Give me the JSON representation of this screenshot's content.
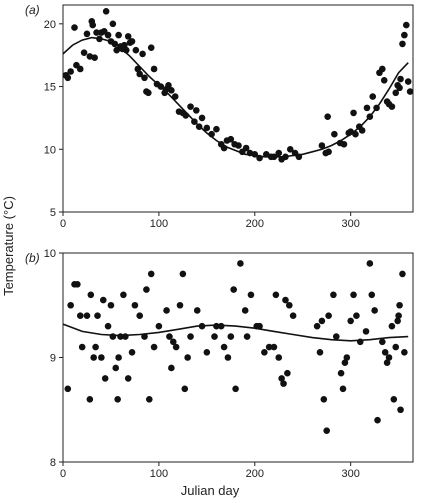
{
  "figure": {
    "ylabel": "Temperature (°C)",
    "xlabel": "Julian day"
  },
  "chart_data": [
    {
      "type": "scatter",
      "panel_label": "(a)",
      "xlim": [
        0,
        365
      ],
      "ylim": [
        5,
        21.5
      ],
      "xticks": [
        0,
        100,
        200,
        300
      ],
      "yticks": [
        5,
        10,
        15,
        20
      ],
      "grid": false,
      "points": [
        [
          3,
          15.9
        ],
        [
          5,
          15.7
        ],
        [
          8,
          16.2
        ],
        [
          12,
          19.7
        ],
        [
          14,
          16.7
        ],
        [
          18,
          16.4
        ],
        [
          22,
          17.7
        ],
        [
          25,
          19.2
        ],
        [
          28,
          17.4
        ],
        [
          30,
          20.2
        ],
        [
          31,
          19.9
        ],
        [
          33,
          17.3
        ],
        [
          35,
          19.3
        ],
        [
          38,
          18.8
        ],
        [
          40,
          19.3
        ],
        [
          43,
          19.4
        ],
        [
          45,
          21.0
        ],
        [
          47,
          19.1
        ],
        [
          50,
          18.6
        ],
        [
          52,
          20.0
        ],
        [
          54,
          18.4
        ],
        [
          56,
          17.9
        ],
        [
          58,
          19.1
        ],
        [
          60,
          18.2
        ],
        [
          62,
          18.0
        ],
        [
          64,
          18.3
        ],
        [
          66,
          17.9
        ],
        [
          68,
          19.0
        ],
        [
          70,
          18.5
        ],
        [
          72,
          18.6
        ],
        [
          76,
          17.9
        ],
        [
          78,
          16.4
        ],
        [
          80,
          16.0
        ],
        [
          83,
          17.6
        ],
        [
          85,
          15.7
        ],
        [
          87,
          14.6
        ],
        [
          89,
          14.5
        ],
        [
          92,
          18.1
        ],
        [
          95,
          16.4
        ],
        [
          98,
          15.2
        ],
        [
          102,
          15.0
        ],
        [
          106,
          14.5
        ],
        [
          108,
          14.8
        ],
        [
          110,
          15.1
        ],
        [
          113,
          14.7
        ],
        [
          117,
          14.2
        ],
        [
          121,
          13.0
        ],
        [
          125,
          12.9
        ],
        [
          128,
          12.7
        ],
        [
          133,
          13.4
        ],
        [
          137,
          12.2
        ],
        [
          139,
          13.1
        ],
        [
          142,
          11.8
        ],
        [
          145,
          12.5
        ],
        [
          150,
          11.7
        ],
        [
          155,
          11.2
        ],
        [
          160,
          11.6
        ],
        [
          165,
          10.4
        ],
        [
          168,
          10.1
        ],
        [
          171,
          10.7
        ],
        [
          175,
          10.8
        ],
        [
          179,
          10.4
        ],
        [
          183,
          10.3
        ],
        [
          187,
          9.8
        ],
        [
          191,
          10.1
        ],
        [
          195,
          9.7
        ],
        [
          200,
          9.6
        ],
        [
          205,
          9.3
        ],
        [
          212,
          9.6
        ],
        [
          217,
          9.4
        ],
        [
          220,
          9.4
        ],
        [
          225,
          9.7
        ],
        [
          228,
          9.2
        ],
        [
          232,
          9.4
        ],
        [
          237,
          10.0
        ],
        [
          242,
          9.7
        ],
        [
          246,
          9.4
        ],
        [
          270,
          10.3
        ],
        [
          274,
          9.7
        ],
        [
          277,
          9.8
        ],
        [
          283,
          11.2
        ],
        [
          289,
          10.5
        ],
        [
          293,
          10.4
        ],
        [
          298,
          11.3
        ],
        [
          300,
          11.4
        ],
        [
          303,
          12.9
        ],
        [
          305,
          11.2
        ],
        [
          309,
          11.8
        ],
        [
          312,
          11.5
        ],
        [
          317,
          13.3
        ],
        [
          320,
          12.6
        ],
        [
          323,
          14.2
        ],
        [
          327,
          13.3
        ],
        [
          330,
          16.1
        ],
        [
          333,
          16.4
        ],
        [
          335,
          15.5
        ],
        [
          338,
          13.8
        ],
        [
          340,
          13.6
        ],
        [
          343,
          13.4
        ],
        [
          347,
          14.5
        ],
        [
          349,
          15.1
        ],
        [
          351,
          14.9
        ],
        [
          352,
          15.6
        ],
        [
          354,
          18.4
        ],
        [
          356,
          19.1
        ],
        [
          358,
          19.9
        ],
        [
          360,
          15.4
        ],
        [
          362,
          14.6
        ],
        [
          276,
          12.6
        ]
      ],
      "fit_line": [
        [
          0,
          17.6
        ],
        [
          10,
          18.3
        ],
        [
          20,
          18.7
        ],
        [
          30,
          18.9
        ],
        [
          40,
          18.8
        ],
        [
          50,
          18.6
        ],
        [
          60,
          18.1
        ],
        [
          70,
          17.4
        ],
        [
          80,
          16.6
        ],
        [
          90,
          15.8
        ],
        [
          100,
          15.1
        ],
        [
          110,
          14.4
        ],
        [
          120,
          13.6
        ],
        [
          130,
          12.8
        ],
        [
          140,
          12.0
        ],
        [
          150,
          11.3
        ],
        [
          160,
          10.7
        ],
        [
          170,
          10.2
        ],
        [
          180,
          9.9
        ],
        [
          190,
          9.6
        ],
        [
          200,
          9.5
        ],
        [
          210,
          9.4
        ],
        [
          220,
          9.4
        ],
        [
          230,
          9.4
        ],
        [
          240,
          9.5
        ],
        [
          250,
          9.6
        ],
        [
          260,
          9.8
        ],
        [
          270,
          10.0
        ],
        [
          280,
          10.3
        ],
        [
          290,
          10.7
        ],
        [
          300,
          11.2
        ],
        [
          310,
          11.8
        ],
        [
          320,
          12.6
        ],
        [
          330,
          13.6
        ],
        [
          340,
          14.8
        ],
        [
          350,
          16.1
        ],
        [
          360,
          16.9
        ]
      ]
    },
    {
      "type": "scatter",
      "panel_label": "(b)",
      "xlim": [
        0,
        365
      ],
      "ylim": [
        8,
        10
      ],
      "xticks": [
        0,
        100,
        200,
        300
      ],
      "yticks": [
        8,
        9,
        10
      ],
      "grid": false,
      "points": [
        [
          5,
          8.7
        ],
        [
          8,
          9.5
        ],
        [
          12,
          9.7
        ],
        [
          15,
          9.7
        ],
        [
          18,
          9.4
        ],
        [
          20,
          9.1
        ],
        [
          25,
          9.4
        ],
        [
          28,
          8.6
        ],
        [
          29,
          9.6
        ],
        [
          32,
          9.0
        ],
        [
          34,
          9.1
        ],
        [
          36,
          9.4
        ],
        [
          40,
          9.0
        ],
        [
          42,
          9.55
        ],
        [
          44,
          8.8
        ],
        [
          47,
          9.3
        ],
        [
          50,
          9.5
        ],
        [
          52,
          9.2
        ],
        [
          55,
          8.9
        ],
        [
          57,
          8.6
        ],
        [
          58,
          9.0
        ],
        [
          60,
          9.2
        ],
        [
          63,
          9.6
        ],
        [
          65,
          9.2
        ],
        [
          68,
          8.8
        ],
        [
          72,
          9.05
        ],
        [
          75,
          9.5
        ],
        [
          80,
          9.4
        ],
        [
          85,
          9.2
        ],
        [
          87,
          9.65
        ],
        [
          90,
          8.6
        ],
        [
          92,
          9.8
        ],
        [
          95,
          9.1
        ],
        [
          100,
          9.3
        ],
        [
          108,
          9.45
        ],
        [
          111,
          9.2
        ],
        [
          113,
          8.9
        ],
        [
          115,
          9.15
        ],
        [
          118,
          9.1
        ],
        [
          122,
          9.5
        ],
        [
          125,
          9.8
        ],
        [
          127,
          8.7
        ],
        [
          130,
          9.0
        ],
        [
          133,
          9.2
        ],
        [
          140,
          9.45
        ],
        [
          145,
          9.3
        ],
        [
          150,
          9.05
        ],
        [
          158,
          9.2
        ],
        [
          160,
          9.3
        ],
        [
          165,
          9.3
        ],
        [
          168,
          9.1
        ],
        [
          172,
          9.0
        ],
        [
          175,
          9.2
        ],
        [
          178,
          9.65
        ],
        [
          180,
          8.7
        ],
        [
          185,
          9.9
        ],
        [
          190,
          9.45
        ],
        [
          192,
          9.2
        ],
        [
          196,
          9.6
        ],
        [
          202,
          9.3
        ],
        [
          205,
          9.3
        ],
        [
          210,
          9.05
        ],
        [
          215,
          9.1
        ],
        [
          220,
          9.1
        ],
        [
          222,
          9.6
        ],
        [
          225,
          9.0
        ],
        [
          228,
          8.8
        ],
        [
          230,
          8.75
        ],
        [
          232,
          9.55
        ],
        [
          234,
          8.85
        ],
        [
          236,
          9.5
        ],
        [
          240,
          9.4
        ],
        [
          265,
          9.3
        ],
        [
          268,
          9.05
        ],
        [
          270,
          9.35
        ],
        [
          272,
          8.6
        ],
        [
          275,
          8.3
        ],
        [
          277,
          9.4
        ],
        [
          282,
          9.6
        ],
        [
          285,
          9.2
        ],
        [
          290,
          8.85
        ],
        [
          292,
          8.7
        ],
        [
          294,
          8.95
        ],
        [
          296,
          9.0
        ],
        [
          300,
          9.35
        ],
        [
          303,
          9.6
        ],
        [
          306,
          9.4
        ],
        [
          310,
          9.15
        ],
        [
          316,
          9.25
        ],
        [
          320,
          9.9
        ],
        [
          322,
          9.6
        ],
        [
          325,
          9.45
        ],
        [
          328,
          8.4
        ],
        [
          333,
          9.15
        ],
        [
          336,
          9.05
        ],
        [
          338,
          8.95
        ],
        [
          340,
          9.0
        ],
        [
          343,
          9.3
        ],
        [
          345,
          8.6
        ],
        [
          347,
          9.1
        ],
        [
          349,
          9.35
        ],
        [
          350,
          9.4
        ],
        [
          351,
          9.5
        ],
        [
          352,
          8.5
        ],
        [
          354,
          9.8
        ],
        [
          356,
          9.05
        ]
      ],
      "fit_line": [
        [
          0,
          9.32
        ],
        [
          20,
          9.25
        ],
        [
          40,
          9.22
        ],
        [
          60,
          9.21
        ],
        [
          80,
          9.22
        ],
        [
          100,
          9.24
        ],
        [
          120,
          9.27
        ],
        [
          140,
          9.3
        ],
        [
          160,
          9.31
        ],
        [
          180,
          9.3
        ],
        [
          200,
          9.28
        ],
        [
          220,
          9.25
        ],
        [
          240,
          9.22
        ],
        [
          260,
          9.19
        ],
        [
          280,
          9.17
        ],
        [
          300,
          9.16
        ],
        [
          320,
          9.17
        ],
        [
          340,
          9.19
        ],
        [
          360,
          9.2
        ]
      ]
    }
  ]
}
